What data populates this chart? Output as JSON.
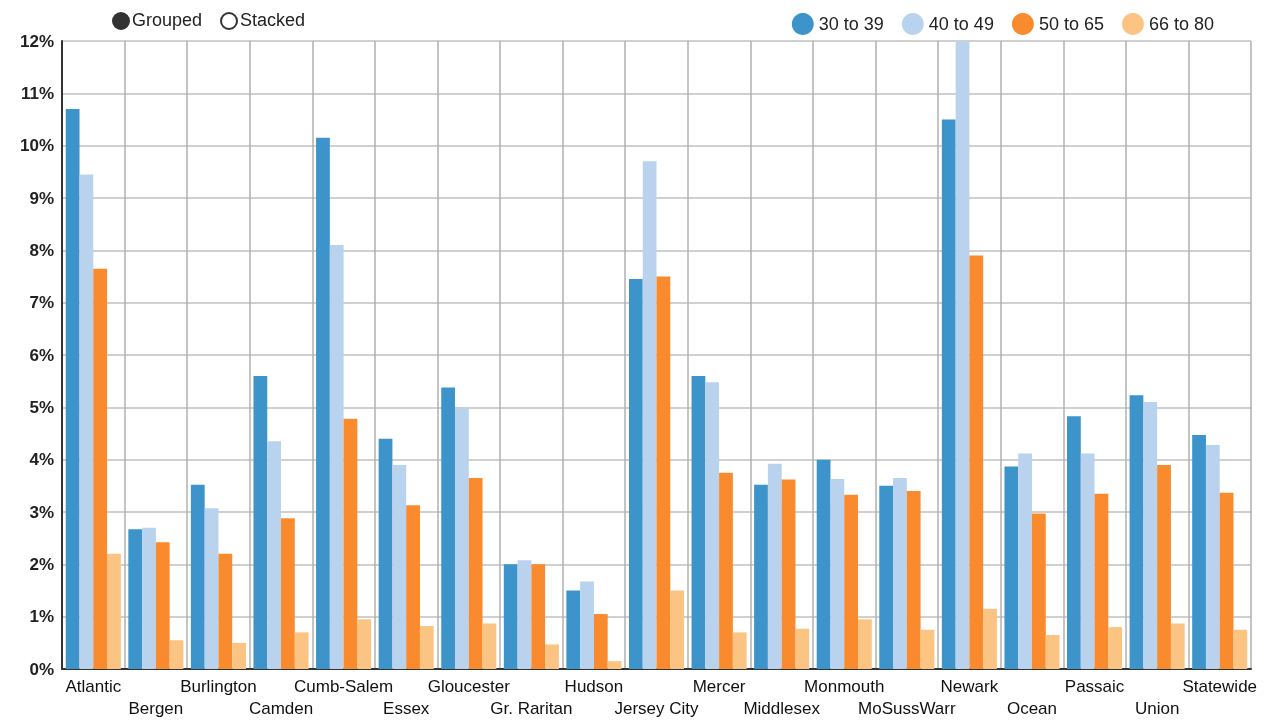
{
  "chart_data": {
    "type": "bar",
    "categories": [
      "Atlantic",
      "Bergen",
      "Burlington",
      "Camden",
      "Cumb-Salem",
      "Essex",
      "Gloucester",
      "Gr. Raritan",
      "Hudson",
      "Jersey City",
      "Mercer",
      "Middlesex",
      "Monmouth",
      "MoSussWarr",
      "Newark",
      "Ocean",
      "Passaic",
      "Union",
      "Statewide"
    ],
    "series": [
      {
        "name": "30 to 39",
        "color": "#3d94cb",
        "values": [
          10.7,
          2.67,
          3.52,
          5.6,
          10.15,
          4.4,
          5.38,
          2.0,
          1.5,
          7.45,
          5.6,
          3.52,
          4.0,
          3.5,
          10.5,
          3.87,
          4.83,
          5.23,
          4.47
        ]
      },
      {
        "name": "40 to 49",
        "color": "#b9d2ee",
        "values": [
          9.45,
          2.7,
          3.07,
          4.35,
          8.1,
          3.9,
          5.0,
          2.08,
          1.67,
          9.7,
          5.48,
          3.92,
          3.63,
          3.65,
          12,
          4.12,
          4.12,
          5.1,
          4.28
        ]
      },
      {
        "name": "50 to 65",
        "color": "#f98b2e",
        "values": [
          7.65,
          2.42,
          2.2,
          2.88,
          4.78,
          3.13,
          3.65,
          2.0,
          1.05,
          7.5,
          3.75,
          3.62,
          3.33,
          3.4,
          7.9,
          2.97,
          3.35,
          3.9,
          3.37
        ]
      },
      {
        "name": "66 to 80",
        "color": "#fbc482",
        "values": [
          2.2,
          0.55,
          0.5,
          0.7,
          0.95,
          0.82,
          0.87,
          0.47,
          0.15,
          1.5,
          0.7,
          0.77,
          0.95,
          0.75,
          1.15,
          0.65,
          0.8,
          0.87,
          0.75
        ]
      }
    ],
    "ylim": [
      0,
      12
    ],
    "yticks": [
      {
        "value": 0,
        "label": "0%"
      },
      {
        "value": 1,
        "label": "1%"
      },
      {
        "value": 2,
        "label": "2%"
      },
      {
        "value": 3,
        "label": "3%"
      },
      {
        "value": 4,
        "label": "4%"
      },
      {
        "value": 5,
        "label": "5%"
      },
      {
        "value": 6,
        "label": "6%"
      },
      {
        "value": 7,
        "label": "7%"
      },
      {
        "value": 8,
        "label": "8%"
      },
      {
        "value": 9,
        "label": "9%"
      },
      {
        "value": 10,
        "label": "10%"
      },
      {
        "value": 11,
        "label": "11%"
      },
      {
        "value": 12,
        "label": "12%"
      }
    ],
    "grid": true,
    "legend": "top right",
    "annotations": [
      "Grouped",
      "Stacked"
    ]
  }
}
